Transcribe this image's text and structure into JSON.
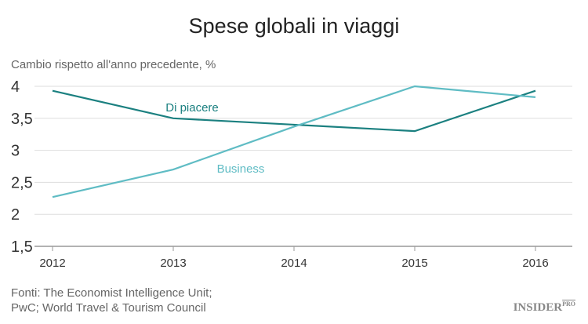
{
  "chart_data": {
    "type": "line",
    "title": "Spese globali in viaggi",
    "ylabel": "Cambio rispetto all'anno precedente, %",
    "x": [
      2012,
      2013,
      2014,
      2015,
      2016
    ],
    "x_tick_labels": [
      "2012",
      "2013",
      "2014",
      "2015",
      "2016"
    ],
    "ylim": [
      1.5,
      4
    ],
    "y_ticks": [
      1.5,
      2,
      2.5,
      3,
      3.5,
      4
    ],
    "y_tick_labels": [
      "1,5",
      "2",
      "2,5",
      "3",
      "3,5",
      "4"
    ],
    "grid": true,
    "series": [
      {
        "name": "Di piacere",
        "values": [
          3.93,
          3.5,
          3.4,
          3.3,
          3.93
        ],
        "color": "#1b8080"
      },
      {
        "name": "Business",
        "values": [
          2.27,
          2.7,
          3.37,
          4.0,
          3.83
        ],
        "color": "#5fbcc4"
      }
    ]
  },
  "source": [
    "Fonti: The Economist Intelligence Unit;",
    "PwC; World Travel & Tourism Council"
  ],
  "logo": {
    "main": "INSIDER",
    "sup": "PRO"
  }
}
